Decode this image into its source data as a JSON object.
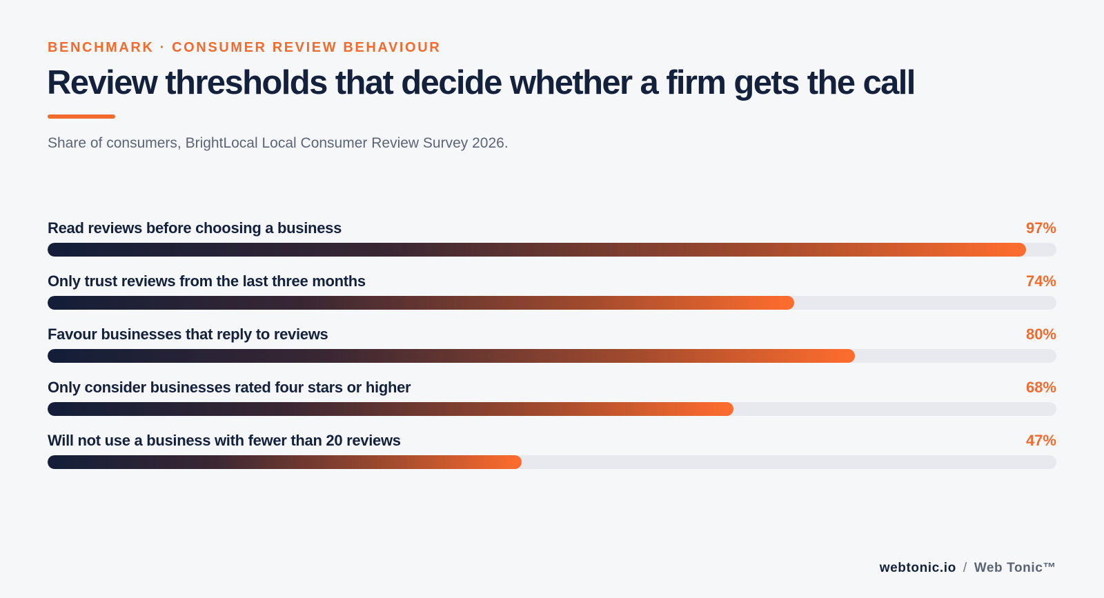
{
  "header": {
    "eyebrow": "BENCHMARK · CONSUMER REVIEW BEHAVIOUR",
    "title": "Review thresholds that decide whether a firm gets the call",
    "subtitle": "Share of consumers, BrightLocal Local Consumer Review Survey 2026."
  },
  "colors": {
    "accent": "#f26b2c",
    "text_dark": "#14213d",
    "text_muted": "#5b6475",
    "track": "#e7e9ee",
    "background": "#f6f7f9",
    "gradient_start": "#131e38",
    "gradient_end": "#ff6d2e"
  },
  "chart_data": {
    "type": "bar",
    "orientation": "horizontal",
    "categories": [
      "Read reviews before choosing a business",
      "Only trust reviews from the last three months",
      "Favour businesses that reply to reviews",
      "Only consider businesses rated four stars or higher",
      "Will not use a business with fewer than 20 reviews"
    ],
    "values": [
      97,
      74,
      80,
      68,
      47
    ],
    "value_labels": [
      "97%",
      "74%",
      "80%",
      "68%",
      "47%"
    ],
    "xlim": [
      0,
      100
    ],
    "grid": false,
    "legend": "none"
  },
  "footer": {
    "domain": "webtonic.io",
    "separator": "/",
    "brand": "Web Tonic™"
  }
}
